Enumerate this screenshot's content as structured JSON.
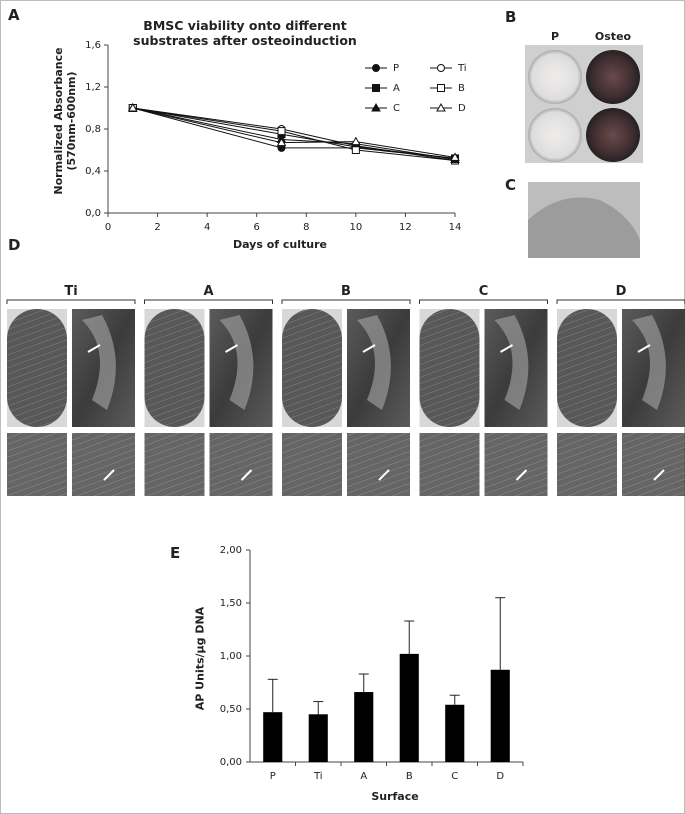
{
  "chart_data": [
    {
      "type": "line",
      "panel": "A",
      "title": "BMSC viability onto different substrates after osteoinduction",
      "x_label": "Days of culture",
      "y_label": "Normalized Absorbance (570nm-600nm)",
      "x": [
        1,
        7,
        10,
        14
      ],
      "series": [
        {
          "name": "P",
          "color": "#111111",
          "marker": "circle",
          "filled": true,
          "values": [
            1.0,
            0.62,
            0.62,
            0.52
          ]
        },
        {
          "name": "Ti",
          "color": "#111111",
          "marker": "circle",
          "filled": false,
          "values": [
            1.0,
            0.8,
            0.64,
            0.5
          ]
        },
        {
          "name": "A",
          "color": "#111111",
          "marker": "square",
          "filled": true,
          "values": [
            1.0,
            0.75,
            0.63,
            0.52
          ]
        },
        {
          "name": "B",
          "color": "#111111",
          "marker": "square",
          "filled": false,
          "values": [
            1.0,
            0.78,
            0.6,
            0.5
          ]
        },
        {
          "name": "C",
          "color": "#111111",
          "marker": "triangle",
          "filled": true,
          "values": [
            1.0,
            0.7,
            0.66,
            0.51
          ]
        },
        {
          "name": "D",
          "color": "#111111",
          "marker": "triangle",
          "filled": false,
          "values": [
            1.0,
            0.67,
            0.68,
            0.53
          ]
        }
      ],
      "xlim": [
        0,
        14
      ],
      "xticks": [
        0,
        2,
        4,
        6,
        8,
        10,
        12,
        14
      ],
      "ylim": [
        0,
        1.6
      ],
      "yticks": [
        {
          "value": 0,
          "label": "0,0"
        },
        {
          "value": 0.4,
          "label": "0,4"
        },
        {
          "value": 0.8,
          "label": "0,8"
        },
        {
          "value": 1.2,
          "label": "1,2"
        },
        {
          "value": 1.6,
          "label": "1,6"
        }
      ]
    },
    {
      "type": "bar",
      "panel": "E",
      "x_label": "Surface",
      "y_label": "AP Units/µg DNA",
      "categories": [
        "P",
        "Ti",
        "A",
        "B",
        "C",
        "D"
      ],
      "values": [
        0.47,
        0.45,
        0.66,
        1.02,
        0.54,
        0.87
      ],
      "errors": [
        0.31,
        0.12,
        0.17,
        0.31,
        0.09,
        0.68
      ],
      "color": "#000000",
      "ylim": [
        0,
        2
      ],
      "yticks": [
        {
          "value": 0,
          "label": "0,00"
        },
        {
          "value": 0.5,
          "label": "0,50"
        },
        {
          "value": 1,
          "label": "1,00"
        },
        {
          "value": 1.5,
          "label": "1,50"
        },
        {
          "value": 2,
          "label": "2,00"
        }
      ]
    }
  ],
  "panels": {
    "B": {
      "label": "B",
      "columns": [
        "P",
        "Osteo"
      ]
    },
    "C": {
      "label": "C"
    },
    "D": {
      "label": "D",
      "groups": [
        "Ti",
        "A",
        "B",
        "C",
        "D"
      ]
    }
  }
}
